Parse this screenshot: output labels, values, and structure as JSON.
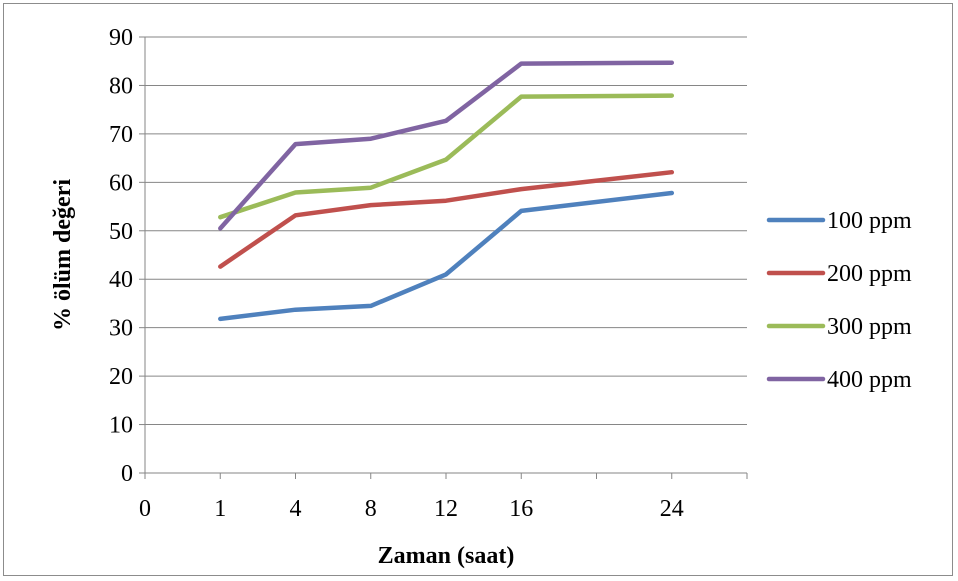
{
  "chart_data": {
    "type": "line",
    "title": "",
    "xlabel": "Zaman (saat)",
    "ylabel": "% ölüm değeri",
    "x_tick_labels": [
      "0",
      "1",
      "4",
      "8",
      "12",
      "16",
      "",
      "24",
      ""
    ],
    "categories": [
      "1",
      "4",
      "8",
      "12",
      "16",
      "24"
    ],
    "ylim": [
      0,
      90
    ],
    "y_ticks": [
      0,
      10,
      20,
      30,
      40,
      50,
      60,
      70,
      80,
      90
    ],
    "grid": "horizontal",
    "legend_position": "right",
    "series": [
      {
        "name": "100 ppm",
        "color": "#4f81bd",
        "values": [
          31.8,
          33.7,
          34.5,
          41.0,
          54.1,
          57.8
        ]
      },
      {
        "name": "200 ppm",
        "color": "#c0504d",
        "values": [
          42.6,
          53.2,
          55.3,
          56.2,
          58.6,
          62.1
        ]
      },
      {
        "name": "300 ppm",
        "color": "#9bbb59",
        "values": [
          52.8,
          57.9,
          58.9,
          64.7,
          77.7,
          77.9
        ]
      },
      {
        "name": "400 ppm",
        "color": "#8064a2",
        "values": [
          50.5,
          67.9,
          69.0,
          72.7,
          84.5,
          84.7
        ]
      }
    ]
  }
}
